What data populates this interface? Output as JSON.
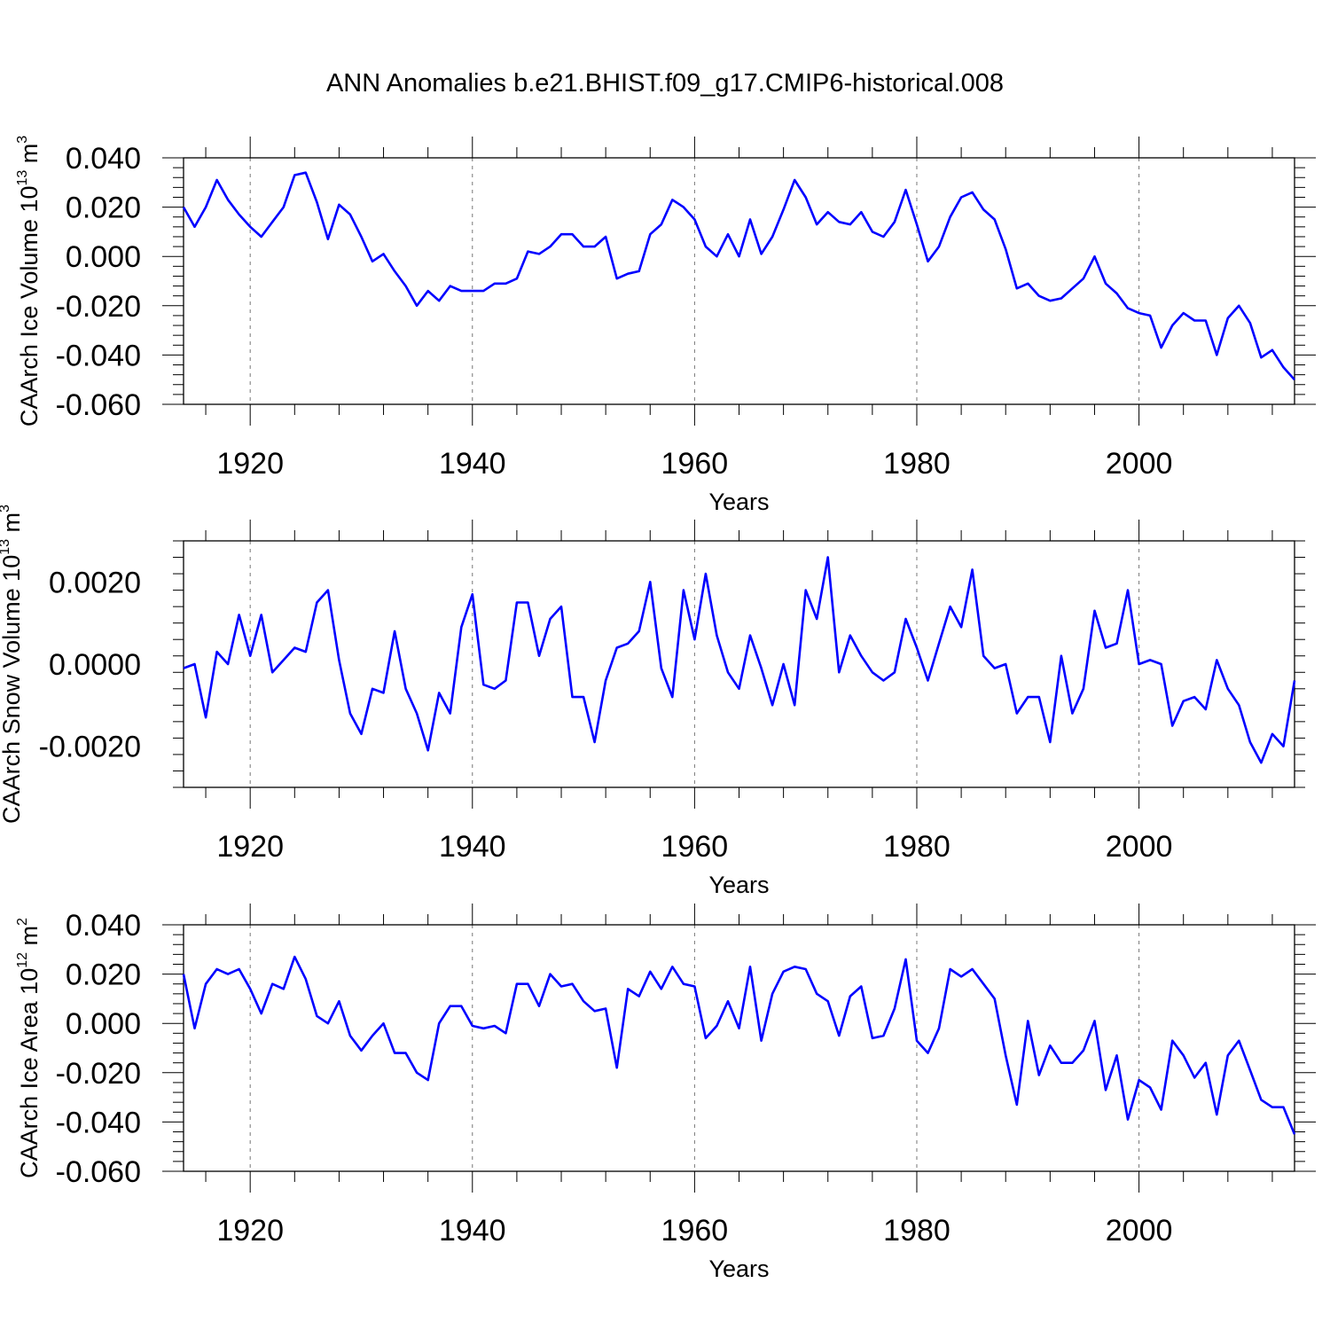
{
  "title": "ANN Anomalies b.e21.BHIST.f09_g17.CMIP6-historical.008",
  "line_color": "#0000ff",
  "chart_data": [
    {
      "type": "line",
      "ylabel": {
        "main": "CAArch Ice Volume 10",
        "exp": "13",
        "unit": " m",
        "unit_exp": "3"
      },
      "xlabel": "Years",
      "xlim": [
        1914,
        2014
      ],
      "ylim": [
        -0.06,
        0.04
      ],
      "xticks": [
        1920,
        1940,
        1960,
        1980,
        2000
      ],
      "yticks": [
        -0.06,
        -0.04,
        -0.02,
        0.0,
        0.02,
        0.04
      ],
      "ytick_labels": [
        "-0.060",
        "-0.040",
        "-0.020",
        "0.000",
        "0.020",
        "0.040"
      ],
      "x_start": 1914,
      "values": [
        0.02,
        0.012,
        0.02,
        0.031,
        0.023,
        0.017,
        0.012,
        0.008,
        0.014,
        0.02,
        0.033,
        0.034,
        0.022,
        0.007,
        0.021,
        0.017,
        0.008,
        -0.002,
        0.001,
        -0.006,
        -0.012,
        -0.02,
        -0.014,
        -0.018,
        -0.012,
        -0.014,
        -0.014,
        -0.014,
        -0.011,
        -0.011,
        -0.009,
        0.002,
        0.001,
        0.004,
        0.009,
        0.009,
        0.004,
        0.004,
        0.008,
        -0.009,
        -0.007,
        -0.006,
        0.009,
        0.013,
        0.023,
        0.02,
        0.015,
        0.004,
        0.0,
        0.009,
        0.0,
        0.015,
        0.001,
        0.008,
        0.019,
        0.031,
        0.024,
        0.013,
        0.018,
        0.014,
        0.013,
        0.018,
        0.01,
        0.008,
        0.014,
        0.027,
        0.013,
        -0.002,
        0.004,
        0.016,
        0.024,
        0.026,
        0.019,
        0.015,
        0.003,
        -0.013,
        -0.011,
        -0.016,
        -0.018,
        -0.017,
        -0.013,
        -0.009,
        0.0,
        -0.011,
        -0.015,
        -0.021,
        -0.023,
        -0.024,
        -0.037,
        -0.028,
        -0.023,
        -0.026,
        -0.026,
        -0.04,
        -0.025,
        -0.02,
        -0.027,
        -0.041,
        -0.038,
        -0.045,
        -0.05
      ]
    },
    {
      "type": "line",
      "ylabel": {
        "main": "CAArch Snow Volume 10",
        "exp": "13",
        "unit": " m",
        "unit_exp": "3"
      },
      "xlabel": "Years",
      "xlim": [
        1914,
        2014
      ],
      "ylim": [
        -0.003,
        0.003
      ],
      "xticks": [
        1920,
        1940,
        1960,
        1980,
        2000
      ],
      "yticks": [
        -0.002,
        0.0,
        0.002
      ],
      "ytick_labels": [
        "-0.0020",
        "0.0000",
        "0.0020"
      ],
      "x_start": 1914,
      "values": [
        -0.0001,
        0.0,
        -0.0013,
        0.0003,
        0.0,
        0.0012,
        0.0002,
        0.0012,
        -0.0002,
        0.0001,
        0.0004,
        0.0003,
        0.0015,
        0.0018,
        0.0001,
        -0.0012,
        -0.0017,
        -0.0006,
        -0.0007,
        0.0008,
        -0.0006,
        -0.0012,
        -0.0021,
        -0.0007,
        -0.0012,
        0.0009,
        0.0017,
        -0.0005,
        -0.0006,
        -0.0004,
        0.0015,
        0.0015,
        0.0002,
        0.0011,
        0.0014,
        -0.0008,
        -0.0008,
        -0.0019,
        -0.0004,
        0.0004,
        0.0005,
        0.0008,
        0.002,
        -0.0001,
        -0.0008,
        0.0018,
        0.0006,
        0.0022,
        0.0007,
        -0.0002,
        -0.0006,
        0.0007,
        -0.0001,
        -0.001,
        0.0,
        -0.001,
        0.0018,
        0.0011,
        0.0026,
        -0.0002,
        0.0007,
        0.0002,
        -0.0002,
        -0.0004,
        -0.0002,
        0.0011,
        0.0004,
        -0.0004,
        0.0005,
        0.0014,
        0.0009,
        0.0023,
        0.0002,
        -0.0001,
        0.0,
        -0.0012,
        -0.0008,
        -0.0008,
        -0.0019,
        0.0002,
        -0.0012,
        -0.0006,
        0.0013,
        0.0004,
        0.0005,
        0.0018,
        0.0,
        0.0001,
        0.0,
        -0.0015,
        -0.0009,
        -0.0008,
        -0.0011,
        0.0001,
        -0.0006,
        -0.001,
        -0.0019,
        -0.0024,
        -0.0017,
        -0.002,
        -0.0004
      ]
    },
    {
      "type": "line",
      "ylabel": {
        "main": "CAArch Ice Area 10",
        "exp": "12",
        "unit": " m",
        "unit_exp": "2"
      },
      "xlabel": "Years",
      "xlim": [
        1914,
        2014
      ],
      "ylim": [
        -0.06,
        0.04
      ],
      "xticks": [
        1920,
        1940,
        1960,
        1980,
        2000
      ],
      "yticks": [
        -0.06,
        -0.04,
        -0.02,
        0.0,
        0.02,
        0.04
      ],
      "ytick_labels": [
        "-0.060",
        "-0.040",
        "-0.020",
        "0.000",
        "0.020",
        "0.040"
      ],
      "x_start": 1914,
      "values": [
        0.02,
        -0.002,
        0.016,
        0.022,
        0.02,
        0.022,
        0.014,
        0.004,
        0.016,
        0.014,
        0.027,
        0.018,
        0.003,
        0.0,
        0.009,
        -0.005,
        -0.011,
        -0.005,
        0.0,
        -0.012,
        -0.012,
        -0.02,
        -0.023,
        0.0,
        0.007,
        0.007,
        -0.001,
        -0.002,
        -0.001,
        -0.004,
        0.016,
        0.016,
        0.007,
        0.02,
        0.015,
        0.016,
        0.009,
        0.005,
        0.006,
        -0.018,
        0.014,
        0.011,
        0.021,
        0.014,
        0.023,
        0.016,
        0.015,
        -0.006,
        -0.001,
        0.009,
        -0.002,
        0.023,
        -0.007,
        0.012,
        0.021,
        0.023,
        0.022,
        0.012,
        0.009,
        -0.005,
        0.011,
        0.015,
        -0.006,
        -0.005,
        0.006,
        0.026,
        -0.007,
        -0.012,
        -0.002,
        0.022,
        0.019,
        0.022,
        0.016,
        0.01,
        -0.013,
        -0.033,
        0.001,
        -0.021,
        -0.009,
        -0.016,
        -0.016,
        -0.011,
        0.001,
        -0.027,
        -0.013,
        -0.039,
        -0.023,
        -0.026,
        -0.035,
        -0.007,
        -0.013,
        -0.022,
        -0.016,
        -0.037,
        -0.013,
        -0.007,
        -0.019,
        -0.031,
        -0.034,
        -0.034,
        -0.045
      ]
    }
  ]
}
